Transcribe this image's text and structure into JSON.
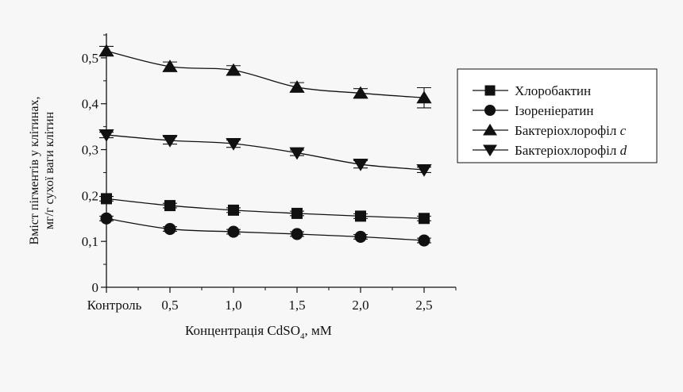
{
  "chart_data": {
    "type": "line",
    "categories": [
      "Контроль",
      "0,5",
      "1,0",
      "1,5",
      "2,0",
      "2,5"
    ],
    "x": [
      0,
      0.5,
      1.0,
      1.5,
      2.0,
      2.5
    ],
    "xlim": [
      0,
      2.75
    ],
    "ylim": [
      0,
      0.55
    ],
    "yticks": [
      0,
      0.1,
      0.2,
      0.3,
      0.4,
      0.5
    ],
    "ytick_labels": [
      "0",
      "0,1",
      "0,2",
      "0,3",
      "0,4",
      "0,5"
    ],
    "ylabel_line1": "Вміст пігментів у клітинах,",
    "ylabel_line2": "мг/г сухої ваги клітин",
    "xlabel_main": "Концентрація CdSO",
    "xlabel_sub": "4",
    "xlabel_unit": ", мМ",
    "legend_position": "right",
    "series": [
      {
        "name": "Хлоробактин",
        "name_suffix": "",
        "marker": "square",
        "values": [
          0.193,
          0.178,
          0.168,
          0.161,
          0.155,
          0.15
        ],
        "errors": [
          0.005,
          0.005,
          0.005,
          0.005,
          0.005,
          0.005
        ]
      },
      {
        "name": "Ізореніератин",
        "name_suffix": "",
        "marker": "circle",
        "values": [
          0.15,
          0.127,
          0.121,
          0.116,
          0.11,
          0.102
        ],
        "errors": [
          0.005,
          0.005,
          0.005,
          0.005,
          0.005,
          0.005
        ]
      },
      {
        "name": "Бактеріохлорофіл ",
        "name_suffix": "c",
        "marker": "triangle-up",
        "values": [
          0.515,
          0.481,
          0.473,
          0.436,
          0.423,
          0.413
        ],
        "errors": [
          0.01,
          0.01,
          0.01,
          0.01,
          0.01,
          0.022
        ]
      },
      {
        "name": "Бактеріохлорофіл ",
        "name_suffix": "d",
        "marker": "triangle-down",
        "values": [
          0.332,
          0.32,
          0.313,
          0.293,
          0.268,
          0.256
        ],
        "errors": [
          0.006,
          0.008,
          0.008,
          0.006,
          0.008,
          0.006
        ]
      }
    ]
  }
}
